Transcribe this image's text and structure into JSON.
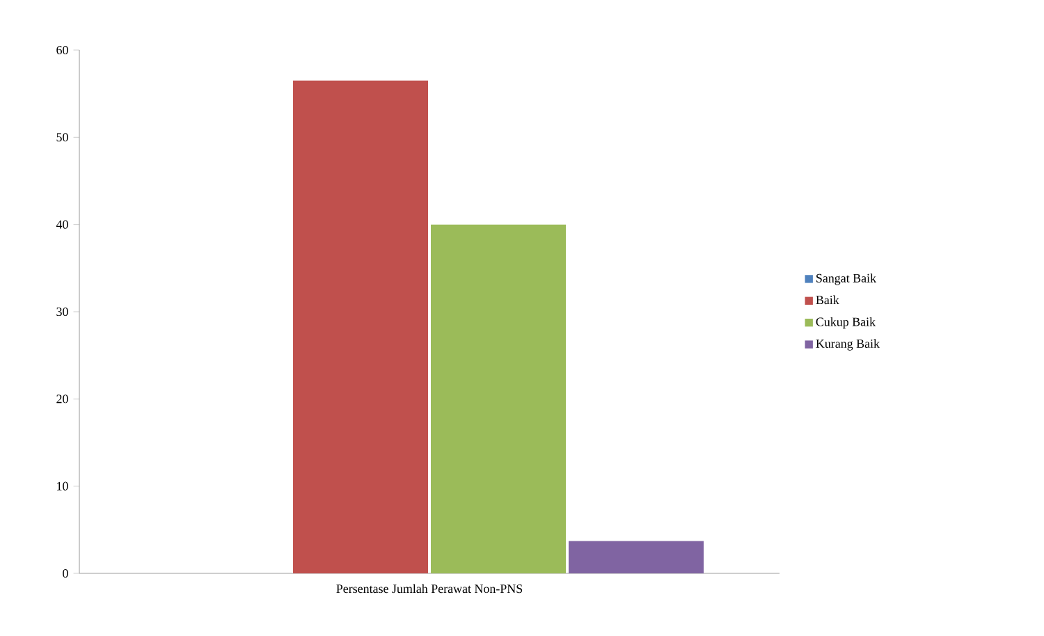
{
  "chart_data": {
    "type": "bar",
    "categories": [
      "Persentase Jumlah Perawat Non-PNS"
    ],
    "series": [
      {
        "name": "Sangat Baik",
        "color": "#4f81bd",
        "values": [
          0
        ]
      },
      {
        "name": "Baik",
        "color": "#c0504d",
        "values": [
          56.5
        ]
      },
      {
        "name": "Cukup Baik",
        "color": "#9bbb59",
        "values": [
          40
        ]
      },
      {
        "name": "Kurang Baik",
        "color": "#8064a2",
        "values": [
          3.7
        ]
      }
    ],
    "ylim": [
      0,
      60
    ],
    "yticks": [
      0,
      10,
      20,
      30,
      40,
      50,
      60
    ],
    "legend": "right",
    "grid": false
  }
}
